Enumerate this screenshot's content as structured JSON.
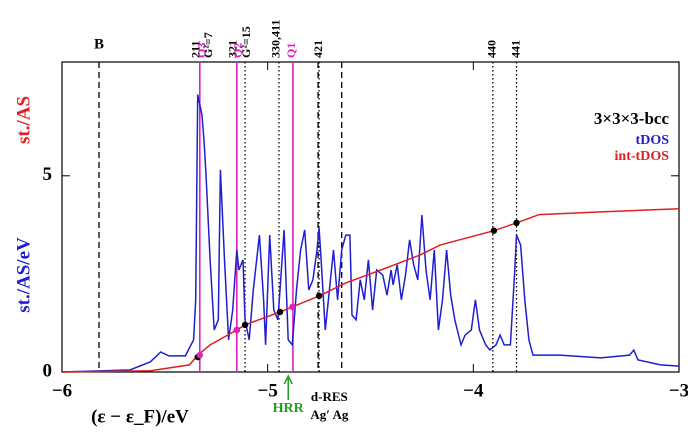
{
  "chart_data": {
    "type": "line",
    "xlabel": "(ε − ε_F)/eV",
    "ylabel": "st./AS/eV",
    "ylabel2": "st./AS",
    "xlim": [
      -6,
      -3
    ],
    "ylim": [
      0,
      7.9
    ],
    "xticks": [
      {
        "value": -6,
        "label": "−6"
      },
      {
        "value": -5,
        "label": "−5"
      },
      {
        "value": -4,
        "label": "−4"
      },
      {
        "value": -3,
        "label": "−3"
      }
    ],
    "yticks": [
      0,
      5
    ],
    "legend_title": "3×3×3-bcc",
    "legend": "upper right",
    "series": [
      {
        "name": "tDOS",
        "color": "#1f1fd0",
        "x": [
          -6.0,
          -5.67,
          -5.57,
          -5.52,
          -5.48,
          -5.4,
          -5.36,
          -5.35,
          -5.34,
          -5.32,
          -5.31,
          -5.3,
          -5.28,
          -5.26,
          -5.24,
          -5.23,
          -5.21,
          -5.19,
          -5.17,
          -5.15,
          -5.14,
          -5.12,
          -5.11,
          -5.09,
          -5.07,
          -5.04,
          -5.02,
          -5.01,
          -4.99,
          -4.97,
          -4.95,
          -4.94,
          -4.92,
          -4.9,
          -4.88,
          -4.86,
          -4.84,
          -4.82,
          -4.8,
          -4.78,
          -4.76,
          -4.75,
          -4.74,
          -4.72,
          -4.7,
          -4.68,
          -4.66,
          -4.64,
          -4.62,
          -4.6,
          -4.59,
          -4.57,
          -4.55,
          -4.53,
          -4.51,
          -4.49,
          -4.47,
          -4.44,
          -4.42,
          -4.4,
          -4.39,
          -4.37,
          -4.35,
          -4.33,
          -4.31,
          -4.29,
          -4.27,
          -4.25,
          -4.23,
          -4.21,
          -4.19,
          -4.17,
          -4.15,
          -4.13,
          -4.11,
          -4.09,
          -4.06,
          -4.04,
          -4.01,
          -3.99,
          -3.97,
          -3.94,
          -3.92,
          -3.89,
          -3.87,
          -3.85,
          -3.82,
          -3.8,
          -3.79,
          -3.77,
          -3.75,
          -3.73,
          -3.71,
          -3.58,
          -3.38,
          -3.24,
          -3.22,
          -3.2,
          -3.09,
          -3.0
        ],
        "values": [
          0,
          0.05,
          0.26,
          0.51,
          0.41,
          0.41,
          0.82,
          1.84,
          7.07,
          6.56,
          5.94,
          5.03,
          2.86,
          1.07,
          1.33,
          5.15,
          2.86,
          0.82,
          1.58,
          3.11,
          2.6,
          2.86,
          1.33,
          0.82,
          2.09,
          3.49,
          1.84,
          0.69,
          3.49,
          1.58,
          1.33,
          2.09,
          3.62,
          0.82,
          0.69,
          2.09,
          3.11,
          3.62,
          2.09,
          2.35,
          3.11,
          3.67,
          2.86,
          1.07,
          2.09,
          3.11,
          1.84,
          3.11,
          3.49,
          3.49,
          1.45,
          1.33,
          2.35,
          1.84,
          2.86,
          1.58,
          2.6,
          2.47,
          1.96,
          2.6,
          2.22,
          2.73,
          1.84,
          2.47,
          3.37,
          2.73,
          2.35,
          4.0,
          2.6,
          1.84,
          3.11,
          1.07,
          1.84,
          3.11,
          1.96,
          1.33,
          0.69,
          0.94,
          1.07,
          1.84,
          1.07,
          0.69,
          0.56,
          0.69,
          0.94,
          0.69,
          0.69,
          2.47,
          3.49,
          3.24,
          1.84,
          0.82,
          0.43,
          0.43,
          0.36,
          0.43,
          0.56,
          0.31,
          0.18,
          0.15
        ]
      },
      {
        "name": "int-tDOS",
        "color": "#e02020",
        "x": [
          -6.0,
          -5.57,
          -5.38,
          -5.34,
          -5.28,
          -5.15,
          -5.11,
          -4.94,
          -4.88,
          -4.75,
          -4.62,
          -4.45,
          -4.26,
          -4.16,
          -3.9,
          -3.79,
          -3.68,
          -3.38,
          -3.0
        ],
        "values": [
          0,
          0.03,
          0.18,
          0.43,
          0.69,
          1.07,
          1.2,
          1.53,
          1.66,
          1.94,
          2.27,
          2.6,
          2.98,
          3.24,
          3.6,
          3.8,
          4.01,
          4.08,
          4.16
        ]
      }
    ],
    "points": [
      {
        "x": -5.34,
        "y": 0.38,
        "color": "#000000"
      },
      {
        "x": -5.15,
        "y": 1.07,
        "color": "#000000"
      },
      {
        "x": -5.11,
        "y": 1.2,
        "color": "#000000"
      },
      {
        "x": -4.94,
        "y": 1.53,
        "color": "#000000"
      },
      {
        "x": -4.75,
        "y": 1.94,
        "color": "#000000"
      },
      {
        "x": -3.9,
        "y": 3.6,
        "color": "#000000"
      },
      {
        "x": -3.79,
        "y": 3.8,
        "color": "#000000"
      },
      {
        "x": -5.33,
        "y": 0.43,
        "color": "#e020c0"
      },
      {
        "x": -5.15,
        "y": 1.07,
        "color": "#e020c0"
      },
      {
        "x": -4.88,
        "y": 1.66,
        "color": "#e020c0"
      }
    ],
    "vlines": [
      {
        "x": -5.82,
        "style": "dashed",
        "color": "#000000"
      },
      {
        "x": -5.33,
        "style": "dotted",
        "color": "#000000"
      },
      {
        "x": -5.15,
        "style": "dotted",
        "color": "#000000"
      },
      {
        "x": -5.11,
        "style": "dotted",
        "color": "#000000"
      },
      {
        "x": -4.945,
        "style": "dotted",
        "color": "#000000"
      },
      {
        "x": -4.75,
        "style": "dotted",
        "color": "#000000"
      },
      {
        "x": -4.755,
        "style": "dashed",
        "color": "#000000"
      },
      {
        "x": -4.64,
        "style": "dashed",
        "color": "#000000"
      },
      {
        "x": -3.905,
        "style": "dotted",
        "color": "#000000"
      },
      {
        "x": -3.79,
        "style": "dotted",
        "color": "#000000"
      },
      {
        "x": -5.33,
        "style": "solid",
        "color": "#e020c0"
      },
      {
        "x": -5.15,
        "style": "solid",
        "color": "#e020c0"
      },
      {
        "x": -4.877,
        "style": "solid",
        "color": "#e020c0"
      }
    ],
    "top_labels": [
      {
        "x": -5.345,
        "text": "211",
        "color": "#000000"
      },
      {
        "x": -5.315,
        "text": "Q3",
        "color": "#e020c0"
      },
      {
        "x": -5.285,
        "text": "G²=7",
        "color": "#000000"
      },
      {
        "x": -5.165,
        "text": "321",
        "color": "#000000"
      },
      {
        "x": -5.14,
        "text": "Q2",
        "color": "#e020c0"
      },
      {
        "x": -5.1,
        "text": "G²=15",
        "color": "#000000"
      },
      {
        "x": -4.955,
        "text": "330,411",
        "color": "#000000"
      },
      {
        "x": -4.88,
        "text": "Q1",
        "color": "#e020c0"
      },
      {
        "x": -4.75,
        "text": "421",
        "color": "#000000"
      },
      {
        "x": -3.905,
        "text": "440",
        "color": "#000000"
      },
      {
        "x": -3.79,
        "text": "441",
        "color": "#000000"
      }
    ],
    "annotations": [
      {
        "x": -5.82,
        "text": "B",
        "color": "#000000",
        "pos": "top"
      },
      {
        "x": -4.9,
        "text": "HRR",
        "color": "#20a020",
        "pos": "arrow"
      },
      {
        "x": -4.7,
        "text": "d-RES",
        "color": "#000000",
        "pos": "below1"
      },
      {
        "x": -4.7,
        "text": "Ag′ Ag",
        "color": "#000000",
        "pos": "below2"
      }
    ]
  }
}
